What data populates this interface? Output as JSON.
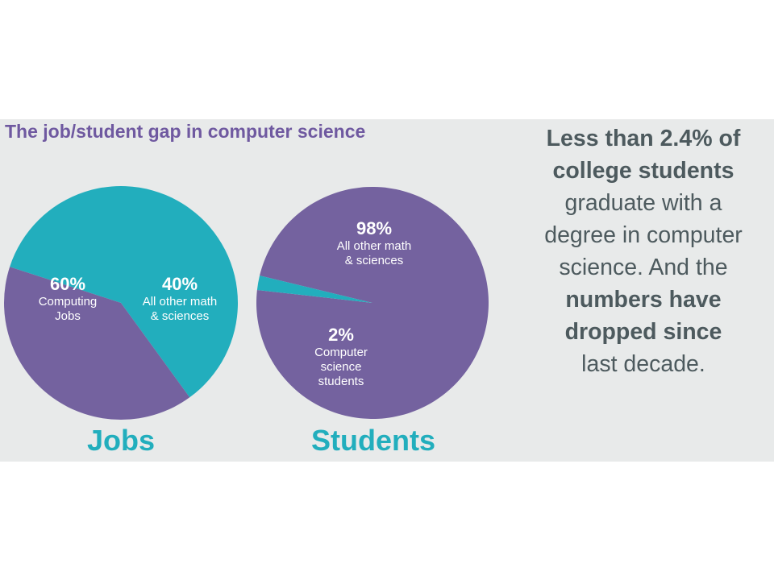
{
  "title": "The job/student gap in computer science",
  "colors": {
    "teal": "#22aebd",
    "purple": "#74629f",
    "panel": "#e8eaea",
    "text_gray": "#4d5a5e",
    "title_purple": "#6f59a0"
  },
  "chart_data": [
    {
      "type": "pie",
      "title": "Jobs",
      "slices": [
        {
          "value": 60,
          "pct_label": "60%",
          "label_lines": [
            "Computing",
            "Jobs"
          ],
          "color": "#22aebd"
        },
        {
          "value": 40,
          "pct_label": "40%",
          "label_lines": [
            "All other math",
            "& sciences"
          ],
          "color": "#74629f"
        }
      ]
    },
    {
      "type": "pie",
      "title": "Students",
      "slices": [
        {
          "value": 98,
          "pct_label": "98%",
          "label_lines": [
            "All other math",
            "& sciences"
          ],
          "color": "#74629f"
        },
        {
          "value": 2,
          "pct_label": "2%",
          "label_lines": [
            "Computer",
            "science",
            "students"
          ],
          "color": "#22aebd"
        }
      ]
    }
  ],
  "side_text": {
    "line1": "Less than 2.4% of",
    "line2": "college students",
    "line3": "graduate with a",
    "line4": "degree in computer",
    "line5": "science. And the",
    "line6": "numbers have",
    "line7": "dropped since",
    "line8": "last decade."
  }
}
